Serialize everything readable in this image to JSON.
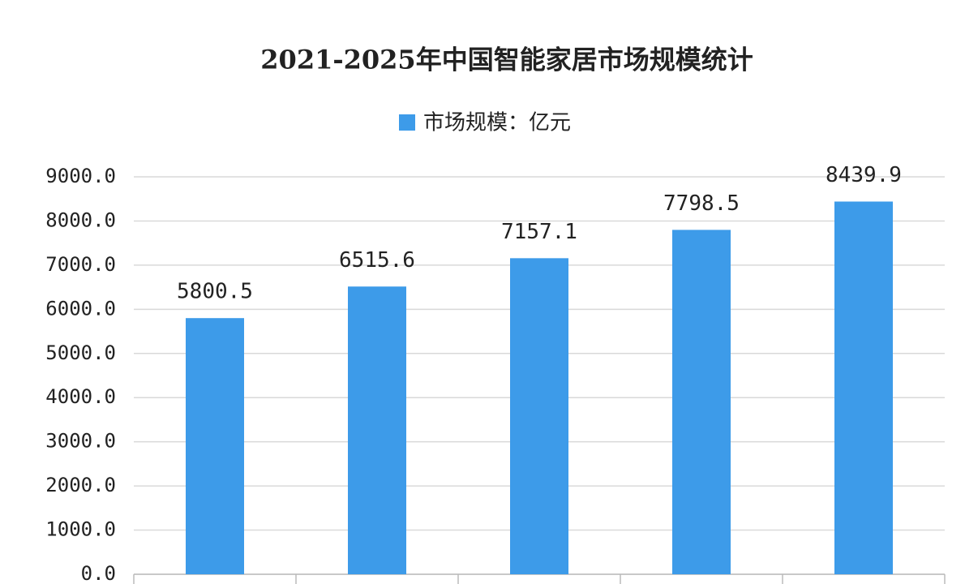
{
  "chart_data": {
    "type": "bar",
    "title": "2021-2025年中国智能家居市场规模统计",
    "categories": [
      null,
      null,
      null,
      null,
      null
    ],
    "series": [
      {
        "name": "市场规模：亿元",
        "color": "#3d9be9",
        "values": [
          5800.5,
          6515.6,
          7157.1,
          7798.5,
          8439.9
        ]
      }
    ],
    "ylim": [
      0,
      9000
    ],
    "yticks": [
      {
        "value": 0,
        "label": "0.0"
      },
      {
        "value": 1000,
        "label": "1000.0"
      },
      {
        "value": 2000,
        "label": "2000.0"
      },
      {
        "value": 3000,
        "label": "3000.0"
      },
      {
        "value": 4000,
        "label": "4000.0"
      },
      {
        "value": 5000,
        "label": "5000.0"
      },
      {
        "value": 6000,
        "label": "6000.0"
      },
      {
        "value": 7000,
        "label": "7000.0"
      },
      {
        "value": 8000,
        "label": "8000.0"
      },
      {
        "value": 9000,
        "label": "9000.0"
      }
    ],
    "grid": true
  }
}
